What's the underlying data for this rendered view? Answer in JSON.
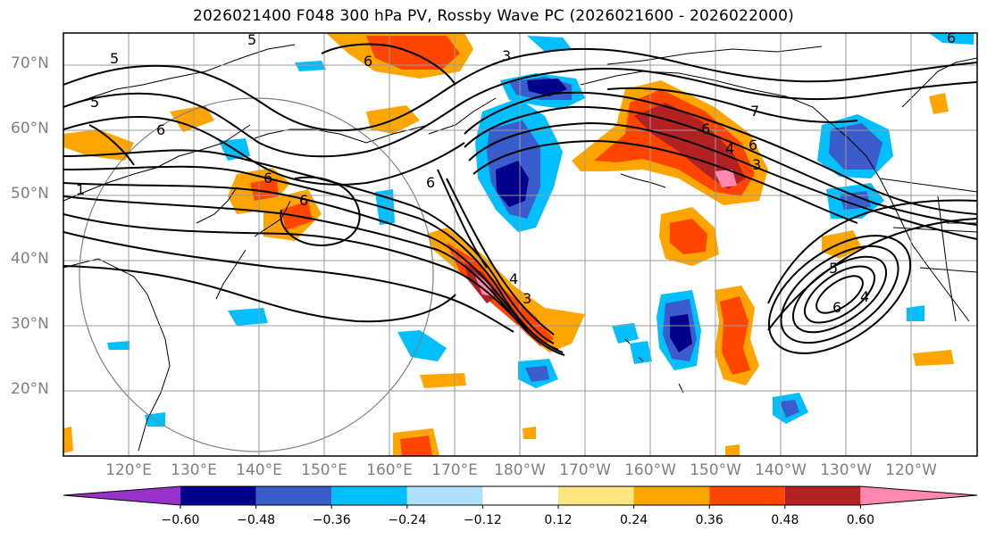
{
  "title": "2026021400 F048 300 hPa PV, Rossby Wave PC (2026021600 - 2026022000)",
  "lat_labels": [
    "70°N",
    "60°N",
    "50°N",
    "40°N",
    "30°N",
    "20°N"
  ],
  "lon_labels": [
    "120°E",
    "130°E",
    "140°E",
    "150°E",
    "160°E",
    "170°E",
    "180°W",
    "170°W",
    "160°W",
    "150°W",
    "140°W",
    "130°W",
    "120°W"
  ],
  "contour_labels": [
    "5",
    "5",
    "5",
    "6",
    "6",
    "1",
    "3",
    "7",
    "6",
    "6",
    "6",
    "4",
    "3",
    "6",
    "3",
    "4",
    "6",
    "6",
    "4",
    "5",
    "6"
  ],
  "colorbar": {
    "ticks": [
      "−0.60",
      "−0.48",
      "−0.36",
      "−0.24",
      "−0.12",
      "0.12",
      "0.24",
      "0.36",
      "0.48",
      "0.60"
    ],
    "colors": [
      "#9932cc",
      "#00008b",
      "#3a5ccc",
      "#00bfff",
      "#b0e0ff",
      "#ffffff",
      "#ffe680",
      "#ffa500",
      "#ff4500",
      "#b22222",
      "#ff88b0"
    ]
  },
  "colors": {
    "dark_neg": "#00008b",
    "mid_neg": "#3a5ccc",
    "light_neg": "#00bfff",
    "lightest_neg": "#b0e0ff",
    "lightest_pos": "#ffe680",
    "light_pos": "#ffa500",
    "mid_pos": "#ff4500",
    "dark_pos": "#b22222",
    "max_pos": "#ff88b0",
    "grid": "#999999",
    "contour": "#000000"
  }
}
